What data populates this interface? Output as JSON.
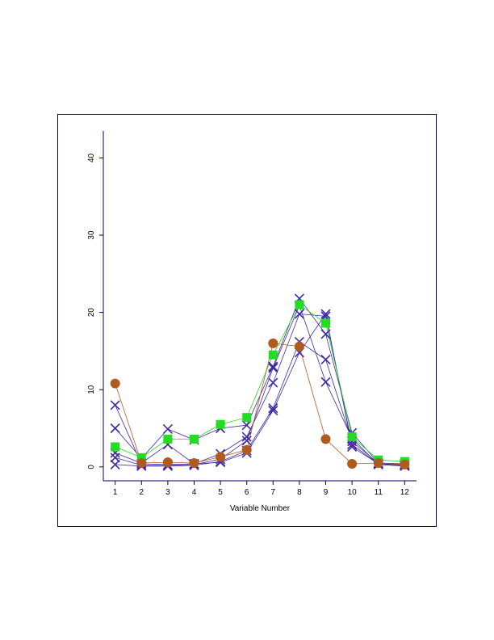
{
  "chart_data": {
    "type": "line",
    "title": "",
    "xlabel": "Variable Number",
    "ylabel": "",
    "x": [
      1,
      2,
      3,
      4,
      5,
      6,
      7,
      8,
      9,
      10,
      11,
      12
    ],
    "xticks": [
      "1",
      "2",
      "3",
      "4",
      "5",
      "6",
      "7",
      "8",
      "9",
      "10",
      "11",
      "12"
    ],
    "yticks": [
      0,
      10,
      20,
      30,
      40
    ],
    "ylim": [
      -1.8,
      43.5
    ],
    "xlim": [
      0.55,
      12.45
    ],
    "grid": false,
    "legend": "none",
    "series": [
      {
        "marker": "circle",
        "color": "#b05a1e",
        "values": [
          10.8,
          0.5,
          0.6,
          0.5,
          1.3,
          2.2,
          16.0,
          15.6,
          3.6,
          0.4,
          0.5,
          0.3
        ]
      },
      {
        "marker": "square",
        "color": "#22dd22",
        "values": [
          2.6,
          1.2,
          3.6,
          3.6,
          5.5,
          6.4,
          14.5,
          21.0,
          18.6,
          3.9,
          0.9,
          0.7
        ]
      },
      {
        "marker": "x",
        "color": "#3f2aa3",
        "values": [
          8.0,
          0.4,
          0.3,
          0.4,
          0.6,
          1.8,
          7.3,
          14.8,
          19.8,
          2.6,
          0.4,
          0.2
        ]
      },
      {
        "marker": "x",
        "color": "#3f2aa3",
        "values": [
          5.0,
          1.1,
          4.9,
          3.5,
          5.0,
          5.4,
          13.0,
          21.8,
          17.2,
          4.4,
          0.5,
          0.4
        ]
      },
      {
        "marker": "x",
        "color": "#3f2aa3",
        "values": [
          1.8,
          0.5,
          2.9,
          0.4,
          1.7,
          3.9,
          10.9,
          19.8,
          19.5,
          2.9,
          0.4,
          0.3
        ]
      },
      {
        "marker": "x",
        "color": "#3f2aa3",
        "values": [
          0.3,
          0.1,
          0.1,
          0.2,
          0.7,
          2.1,
          7.6,
          16.2,
          13.9,
          3.3,
          0.5,
          0.2
        ]
      },
      {
        "marker": "x",
        "color": "#3f2aa3",
        "values": [
          1.2,
          0.2,
          0.2,
          0.3,
          1.0,
          3.4,
          12.8,
          20.9,
          11.0,
          3.7,
          0.3,
          0.1
        ]
      }
    ],
    "colors": {
      "frame": "#000066",
      "axis": "#000066"
    }
  }
}
